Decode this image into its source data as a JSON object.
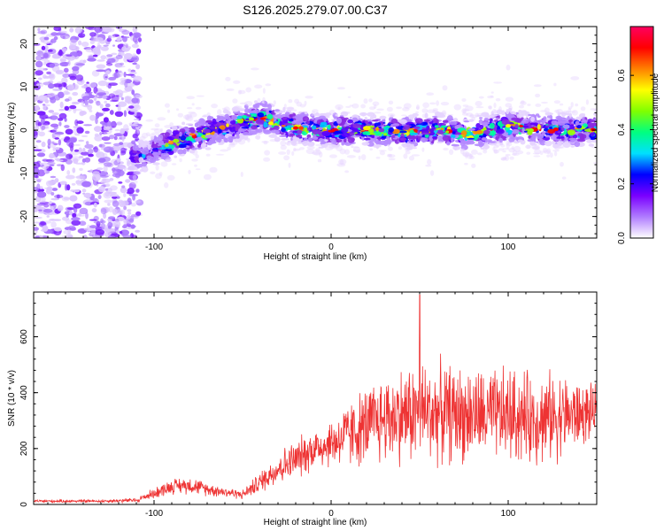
{
  "figure_title": "S126.2025.279.07.00.C37",
  "chart_data": [
    {
      "type": "heatmap",
      "title": "S126.2025.279.07.00.C37",
      "xlabel": "Height of straight line (km)",
      "ylabel": "Frequency (Hz)",
      "xlim": [
        -168,
        150
      ],
      "ylim": [
        -25,
        24
      ],
      "xticks": [
        -100,
        0,
        100
      ],
      "yticks": [
        -20,
        -10,
        0,
        10,
        20
      ],
      "colorbar": {
        "label": "Normalized spectral amplitude",
        "range": [
          0.0,
          0.78
        ],
        "ticks": [
          0.0,
          0.2,
          0.4,
          0.6
        ],
        "tick_labels": [
          "0.0",
          "0.2",
          "0.4",
          "0.6"
        ],
        "colors": [
          "#ffffff",
          "#b07cff",
          "#7a00ff",
          "#0000ff",
          "#00e0ff",
          "#00ff80",
          "#80ff00",
          "#ffff00",
          "#ff8000",
          "#ff0000",
          "#ff0060"
        ]
      },
      "ridge": {
        "x": [
          -105,
          -90,
          -75,
          -60,
          -45,
          -40,
          -30,
          -20,
          -10,
          0,
          20,
          40,
          60,
          80,
          100,
          120,
          148
        ],
        "freq": [
          -6,
          -3,
          -1,
          0.5,
          2.5,
          3,
          1.5,
          0.5,
          0,
          0,
          0,
          -0.5,
          0,
          -1,
          1,
          0,
          0
        ]
      },
      "noise_region": {
        "x": [
          -168,
          -108
        ],
        "freq": [
          -25,
          24
        ]
      }
    },
    {
      "type": "line",
      "xlabel": "Height of straight line (km)",
      "ylabel": "SNR (10 * v/v)",
      "xlim": [
        -168,
        150
      ],
      "ylim": [
        0,
        760
      ],
      "xticks": [
        -100,
        0,
        100
      ],
      "yticks": [
        0,
        200,
        400,
        600
      ],
      "series": [
        {
          "name": "SNR",
          "color": "#ee3333",
          "envelope_x": [
            -168,
            -130,
            -110,
            -100,
            -90,
            -80,
            -70,
            -60,
            -50,
            -40,
            -30,
            -20,
            -10,
            0,
            10,
            20,
            30,
            40,
            50,
            60,
            70,
            80,
            90,
            100,
            110,
            120,
            130,
            140,
            150
          ],
          "envelope_mean": [
            12,
            12,
            15,
            40,
            65,
            70,
            55,
            45,
            35,
            80,
            130,
            160,
            200,
            220,
            250,
            280,
            310,
            320,
            330,
            330,
            325,
            320,
            315,
            320,
            310,
            310,
            320,
            320,
            330
          ],
          "envelope_spread": [
            5,
            5,
            8,
            18,
            25,
            28,
            22,
            18,
            15,
            35,
            55,
            65,
            70,
            80,
            110,
            130,
            150,
            160,
            170,
            165,
            160,
            155,
            150,
            160,
            150,
            150,
            140,
            110,
            80
          ],
          "peak": {
            "x": 50,
            "y": 750
          }
        }
      ]
    }
  ]
}
